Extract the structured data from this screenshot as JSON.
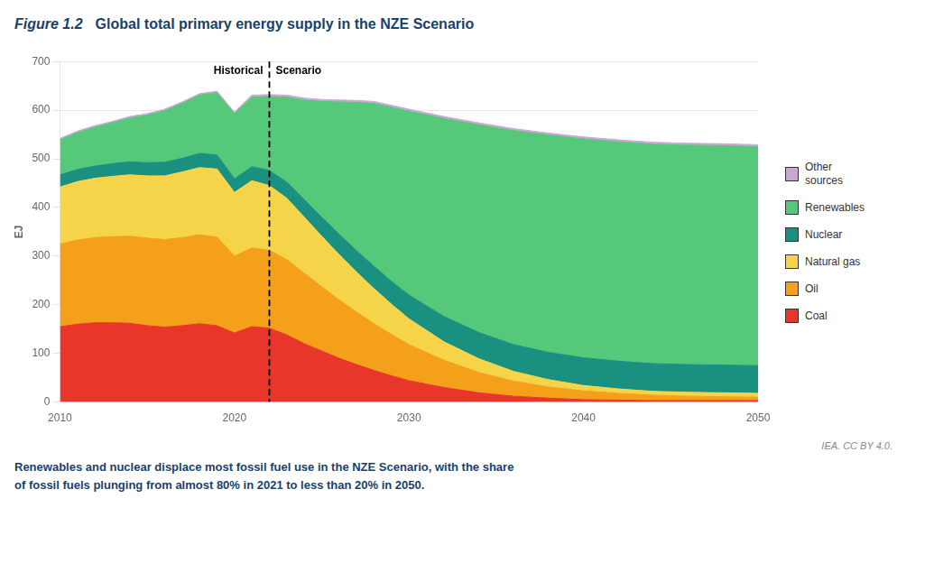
{
  "chart_data": {
    "type": "area",
    "stacked": true,
    "title_fig": "Figure 1.2",
    "title": "Global total primary energy supply in the NZE Scenario",
    "title_color": "#1a3f6b",
    "ylabel": "EJ",
    "caption": "Renewables and nuclear displace most fossil fuel use in the NZE Scenario, with the share\nof fossil fuels plunging from almost 80% in 2021 to less than 20% in 2050.",
    "caption_color": "#1a3f6b",
    "credit": "IEA. CC BY 4.0.",
    "annotations": [
      {
        "x": 2022,
        "line_style": "dashed",
        "left_text": "Historical",
        "right_text": "Scenario"
      }
    ],
    "x": [
      2010,
      2011,
      2012,
      2013,
      2014,
      2015,
      2016,
      2017,
      2018,
      2019,
      2020,
      2021,
      2022,
      2023,
      2024,
      2025,
      2026,
      2027,
      2028,
      2029,
      2030,
      2032,
      2034,
      2036,
      2038,
      2040,
      2042,
      2044,
      2046,
      2048,
      2050
    ],
    "series": [
      {
        "name": "Coal",
        "color": "#e8372a",
        "values": [
          155,
          160,
          163,
          163,
          162,
          157,
          154,
          157,
          161,
          157,
          142,
          155,
          152,
          138,
          120,
          105,
          90,
          77,
          65,
          54,
          44,
          30,
          19,
          12,
          8,
          5,
          4,
          3,
          3,
          3,
          3
        ]
      },
      {
        "name": "Oil",
        "color": "#f5a01a",
        "values": [
          170,
          173,
          175,
          177,
          179,
          180,
          180,
          181,
          183,
          182,
          158,
          162,
          160,
          155,
          145,
          132,
          120,
          108,
          96,
          85,
          74,
          56,
          42,
          31,
          23,
          18,
          14,
          11,
          9,
          8,
          7
        ]
      },
      {
        "name": "Natural gas",
        "color": "#f5d44a",
        "values": [
          117,
          120,
          122,
          124,
          126,
          128,
          131,
          135,
          138,
          140,
          131,
          138,
          133,
          126,
          115,
          104,
          93,
          82,
          72,
          62,
          53,
          38,
          28,
          20,
          15,
          11,
          9,
          8,
          8,
          8,
          8
        ]
      },
      {
        "name": "Nuclear",
        "color": "#1a9080",
        "values": [
          25,
          25,
          25,
          26,
          27,
          27,
          28,
          28,
          29,
          29,
          28,
          29,
          31,
          33,
          36,
          39,
          42,
          44,
          46,
          47,
          49,
          52,
          54,
          55,
          56,
          57,
          57,
          57,
          57,
          57,
          57
        ]
      },
      {
        "name": "Renewables",
        "color": "#55c87a",
        "values": [
          72,
          76,
          80,
          84,
          90,
          98,
          106,
          113,
          120,
          128,
          134,
          143,
          152,
          175,
          205,
          238,
          272,
          305,
          335,
          358,
          378,
          407,
          427,
          440,
          447,
          450,
          451,
          451,
          451,
          451,
          450
        ]
      },
      {
        "name": "Other\nsources",
        "color": "#c9a9d4",
        "values": [
          3,
          3,
          3,
          3,
          3,
          3,
          3,
          3,
          3,
          3,
          3,
          4,
          4,
          4,
          4,
          4,
          4,
          4,
          4,
          4,
          4,
          4,
          4,
          4,
          4,
          4,
          4,
          4,
          4,
          4,
          4
        ]
      }
    ],
    "xlim": [
      2010,
      2050
    ],
    "xticks": [
      2010,
      {
        "value": 2015,
        "label": ""
      },
      2020,
      {
        "value": 2025,
        "label": ""
      },
      2030,
      {
        "value": 2035,
        "label": ""
      },
      2040,
      {
        "value": 2045,
        "label": ""
      },
      2050
    ],
    "ylim": [
      0,
      700
    ],
    "yticks": [
      0,
      100,
      200,
      300,
      400,
      500,
      600,
      700
    ],
    "grid": true,
    "legend": "right"
  }
}
